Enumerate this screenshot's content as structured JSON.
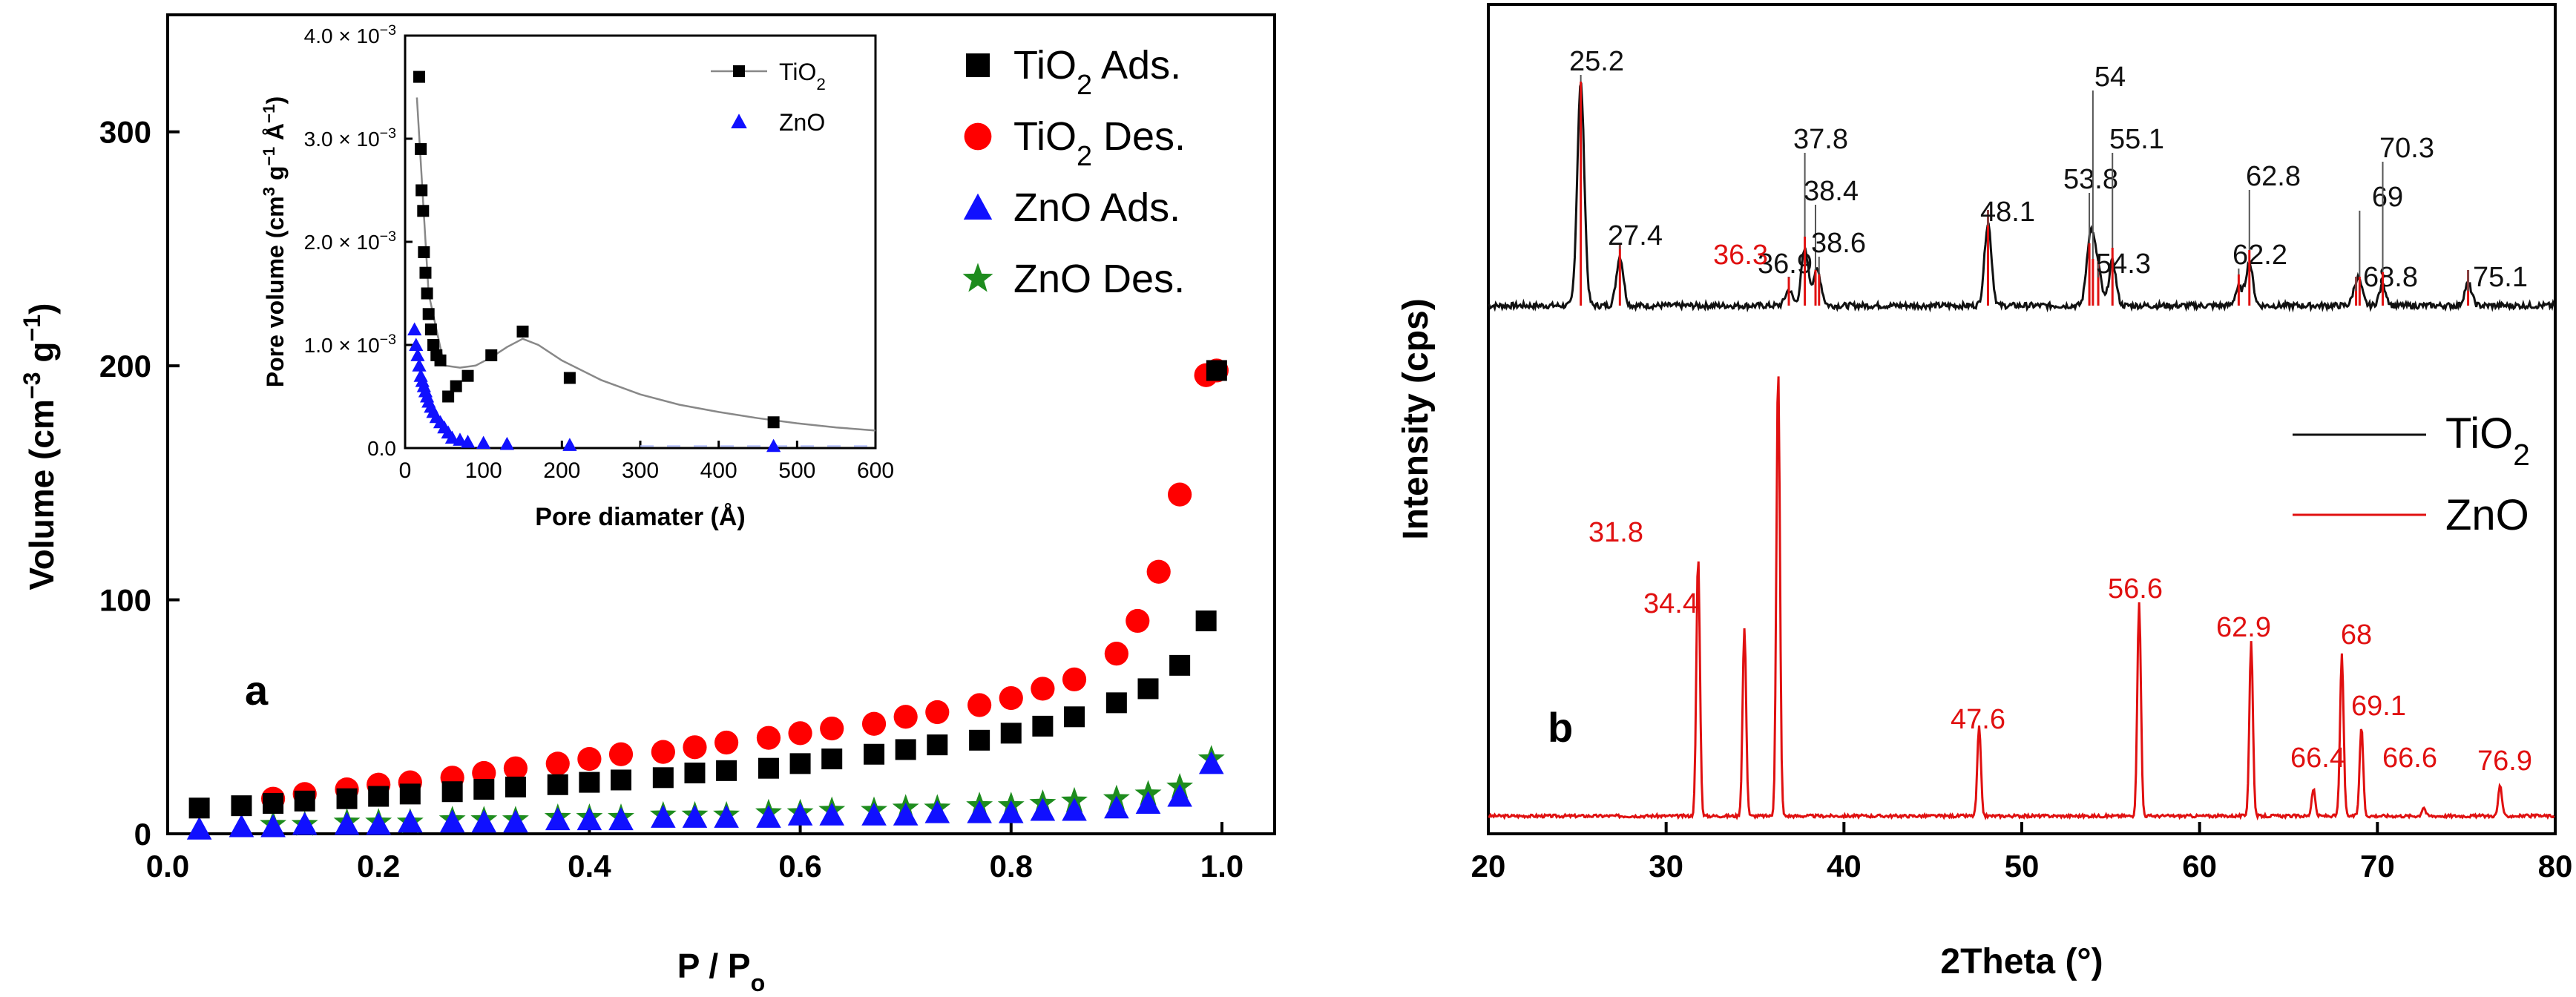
{
  "colors": {
    "tio2_ads": "#000000",
    "tio2_des": "#ff0000",
    "zno_ads": "#1010ff",
    "zno_des": "#1e8c1e",
    "tio2_xrd": "#111111",
    "zno_xrd": "#e01010",
    "fit_line": "#888888"
  },
  "chart_data": [
    {
      "id": "a",
      "type": "scatter",
      "panel_label": "a",
      "xlabel": "P / P",
      "xlabel_sub": "o",
      "ylabel": "Volume (cm",
      "ylabel_sup": "−3",
      "ylabel_tail": " g",
      "ylabel_sup2": "−1",
      "ylabel_end": ")",
      "xlim": [
        0.0,
        1.05
      ],
      "ylim": [
        0,
        350
      ],
      "xticks": [
        0.0,
        0.2,
        0.4,
        0.6,
        0.8,
        1.0
      ],
      "xtick_labels": [
        "0.0",
        "0.2",
        "0.4",
        "0.6",
        "0.8",
        "1.0"
      ],
      "yticks": [
        0,
        100,
        200,
        300
      ],
      "ytick_labels": [
        "0",
        "100",
        "200",
        "300"
      ],
      "legend_position": "top-right",
      "series": [
        {
          "name": "TiO2 Ads.",
          "legend_main": "TiO",
          "legend_sub": "2",
          "legend_tail": " Ads.",
          "marker": "square",
          "color_key": "tio2_ads",
          "x": [
            0.03,
            0.07,
            0.1,
            0.13,
            0.17,
            0.2,
            0.23,
            0.27,
            0.3,
            0.33,
            0.37,
            0.4,
            0.43,
            0.47,
            0.5,
            0.53,
            0.57,
            0.6,
            0.63,
            0.67,
            0.7,
            0.73,
            0.77,
            0.8,
            0.83,
            0.86,
            0.9,
            0.93,
            0.96,
            0.985,
            0.995
          ],
          "y": [
            11,
            12,
            13,
            14,
            15,
            16,
            17,
            18,
            19,
            20,
            21,
            22,
            23,
            24,
            26,
            27,
            28,
            30,
            32,
            34,
            36,
            38,
            40,
            43,
            46,
            50,
            56,
            62,
            72,
            91,
            198
          ]
        },
        {
          "name": "TiO2 Des.",
          "legend_main": "TiO",
          "legend_sub": "2",
          "legend_tail": " Des.",
          "marker": "circle",
          "color_key": "tio2_des",
          "x": [
            0.1,
            0.13,
            0.17,
            0.2,
            0.23,
            0.27,
            0.3,
            0.33,
            0.37,
            0.4,
            0.43,
            0.47,
            0.5,
            0.53,
            0.57,
            0.6,
            0.63,
            0.67,
            0.7,
            0.73,
            0.77,
            0.8,
            0.83,
            0.86,
            0.9,
            0.92,
            0.94,
            0.96,
            0.985,
            0.995
          ],
          "y": [
            15,
            17,
            19,
            21,
            22,
            24,
            26,
            28,
            30,
            32,
            34,
            35,
            37,
            39,
            41,
            43,
            45,
            47,
            50,
            52,
            55,
            58,
            62,
            66,
            77,
            91,
            112,
            145,
            196,
            198
          ]
        },
        {
          "name": "ZnO Ads.",
          "legend_main": "ZnO",
          "legend_sub": "",
          "legend_tail": " Ads.",
          "marker": "triangle",
          "color_key": "zno_ads",
          "x": [
            0.03,
            0.07,
            0.1,
            0.13,
            0.17,
            0.2,
            0.23,
            0.27,
            0.3,
            0.33,
            0.37,
            0.4,
            0.43,
            0.47,
            0.5,
            0.53,
            0.57,
            0.6,
            0.63,
            0.67,
            0.7,
            0.73,
            0.77,
            0.8,
            0.83,
            0.86,
            0.9,
            0.93,
            0.96,
            0.99
          ],
          "y": [
            2,
            3,
            3,
            4,
            4,
            4,
            5,
            5,
            5,
            5,
            6,
            6,
            6,
            7,
            7,
            7,
            7,
            8,
            8,
            8,
            8,
            9,
            9,
            9,
            10,
            10,
            11,
            13,
            16,
            30
          ]
        },
        {
          "name": "ZnO Des.",
          "legend_main": "ZnO",
          "legend_sub": "",
          "legend_tail": " Des.",
          "marker": "star",
          "color_key": "zno_des",
          "x": [
            0.1,
            0.13,
            0.17,
            0.2,
            0.23,
            0.27,
            0.3,
            0.33,
            0.37,
            0.4,
            0.43,
            0.47,
            0.5,
            0.53,
            0.57,
            0.6,
            0.63,
            0.67,
            0.7,
            0.73,
            0.77,
            0.8,
            0.83,
            0.86,
            0.9,
            0.93,
            0.96,
            0.99
          ],
          "y": [
            4,
            4,
            5,
            5,
            5,
            6,
            6,
            6,
            7,
            7,
            7,
            8,
            8,
            8,
            9,
            9,
            10,
            10,
            11,
            11,
            12,
            12,
            13,
            14,
            15,
            17,
            20,
            32
          ]
        }
      ],
      "inset": {
        "type": "scatter",
        "xlabel": "Pore diamater (Å)",
        "ylabel": "Pore volume (cm",
        "ylabel_sup": "3",
        "ylabel_mid": " g",
        "ylabel_sup2": "−1",
        "ylabel_mid2": " Å",
        "ylabel_sup3": "−1",
        "ylabel_end": ")",
        "xlim": [
          0,
          600
        ],
        "ylim": [
          0,
          0.004
        ],
        "xticks": [
          0,
          100,
          200,
          300,
          400,
          500,
          600
        ],
        "xtick_labels": [
          "0",
          "100",
          "200",
          "300",
          "400",
          "500",
          "600"
        ],
        "yticks": [
          0,
          0.001,
          0.002,
          0.003,
          0.004
        ],
        "ytick_labels": [
          "0.0",
          "1.0 × 10",
          "2.0 × 10",
          "3.0 × 10",
          "4.0 × 10"
        ],
        "ytick_exp": [
          "",
          "−3",
          "−3",
          "−3",
          "−3"
        ],
        "legend_position": "top-right",
        "series": [
          {
            "name": "TiO2",
            "legend_main": "TiO",
            "legend_sub": "2",
            "marker": "square-line",
            "color_key": "tio2_ads",
            "x": [
              18,
              20,
              21,
              23,
              24,
              26,
              28,
              30,
              33,
              36,
              40,
              45,
              55,
              65,
              80,
              110,
              150,
              210,
              470
            ],
            "y": [
              0.0036,
              0.0029,
              0.0025,
              0.0023,
              0.0019,
              0.0017,
              0.0015,
              0.0013,
              0.00115,
              0.001,
              0.0009,
              0.00085,
              0.0005,
              0.0006,
              0.0007,
              0.0009,
              0.00113,
              0.00068,
              0.00025
            ],
            "fit_x": [
              15,
              30,
              50,
              70,
              90,
              110,
              130,
              150,
              170,
              200,
              250,
              300,
              350,
              400,
              450,
              500,
              550,
              600
            ],
            "fit_y": [
              0.0034,
              0.0015,
              0.0008,
              0.00078,
              0.0008,
              0.00088,
              0.00098,
              0.00106,
              0.001,
              0.00085,
              0.00066,
              0.00052,
              0.00042,
              0.00035,
              0.00029,
              0.00024,
              0.0002,
              0.00017
            ]
          },
          {
            "name": "ZnO",
            "legend_main": "ZnO",
            "legend_sub": "",
            "marker": "triangle",
            "color_key": "zno_ads",
            "x": [
              12,
              14,
              16,
              18,
              20,
              22,
              24,
              26,
              28,
              30,
              33,
              36,
              40,
              45,
              50,
              55,
              60,
              70,
              80,
              100,
              130,
              210,
              470
            ],
            "y": [
              0.00115,
              0.001,
              0.0009,
              0.0008,
              0.0007,
              0.00065,
              0.0006,
              0.00055,
              0.0005,
              0.00045,
              0.0004,
              0.00035,
              0.0003,
              0.00025,
              0.0002,
              0.00015,
              0.0001,
              8e-05,
              6e-05,
              5e-05,
              4e-05,
              3e-05,
              2e-05
            ]
          }
        ]
      }
    },
    {
      "id": "b",
      "type": "line",
      "panel_label": "b",
      "xlabel": "2Theta (°)",
      "ylabel": "Intensity (cps)",
      "xlim": [
        20,
        80
      ],
      "xticks": [
        20,
        30,
        40,
        50,
        60,
        70,
        80
      ],
      "xtick_labels": [
        "20",
        "30",
        "40",
        "50",
        "60",
        "70",
        "80"
      ],
      "legend_position": "center-right",
      "series": [
        {
          "name": "TiO2",
          "legend_main": "TiO",
          "legend_sub": "2",
          "color_key": "tio2_xrd",
          "peaks": [
            {
              "pos": 25.2,
              "height": 1.0,
              "label": "25.2"
            },
            {
              "pos": 27.4,
              "height": 0.22,
              "label": "27.4"
            },
            {
              "pos": 36.9,
              "height": 0.07,
              "label": "36.9"
            },
            {
              "pos": 37.8,
              "height": 0.25,
              "label": "37.8"
            },
            {
              "pos": 38.4,
              "height": 0.1,
              "label": "38.4"
            },
            {
              "pos": 38.6,
              "height": 0.08,
              "label": "38.6"
            },
            {
              "pos": 48.1,
              "height": 0.37,
              "label": "48.1"
            },
            {
              "pos": 53.8,
              "height": 0.22,
              "label": "53.8"
            },
            {
              "pos": 54.0,
              "height": 0.15,
              "label": "54"
            },
            {
              "pos": 54.3,
              "height": 0.14,
              "label": "54.3"
            },
            {
              "pos": 55.1,
              "height": 0.2,
              "label": "55.1"
            },
            {
              "pos": 62.2,
              "height": 0.08,
              "label": "62.2"
            },
            {
              "pos": 62.8,
              "height": 0.19,
              "label": "62.8"
            },
            {
              "pos": 68.8,
              "height": 0.07,
              "label": "68.8"
            },
            {
              "pos": 69.0,
              "height": 0.07,
              "label": "69"
            },
            {
              "pos": 70.3,
              "height": 0.09,
              "label": "70.3"
            },
            {
              "pos": 75.1,
              "height": 0.1,
              "label": "75.1"
            }
          ]
        },
        {
          "name": "ZnO",
          "legend_main": "ZnO",
          "legend_sub": "",
          "color_key": "zno_xrd",
          "peaks": [
            {
              "pos": 31.8,
              "height": 0.58,
              "label": "31.8"
            },
            {
              "pos": 34.4,
              "height": 0.42,
              "label": "34.4"
            },
            {
              "pos": 36.3,
              "height": 1.0,
              "label": "36.3"
            },
            {
              "pos": 47.6,
              "height": 0.2,
              "label": "47.6"
            },
            {
              "pos": 56.6,
              "height": 0.48,
              "label": "56.6"
            },
            {
              "pos": 62.9,
              "height": 0.39,
              "label": "62.9"
            },
            {
              "pos": 66.4,
              "height": 0.06,
              "label": "66.4"
            },
            {
              "pos": 68.0,
              "height": 0.36,
              "label": "68"
            },
            {
              "pos": 69.1,
              "height": 0.2,
              "label": "69.1"
            },
            {
              "pos": 72.6,
              "height": 0.02,
              "label": ""
            },
            {
              "pos": 76.9,
              "height": 0.07,
              "label": "76.9"
            }
          ],
          "extra_label": "66.6"
        }
      ]
    }
  ]
}
